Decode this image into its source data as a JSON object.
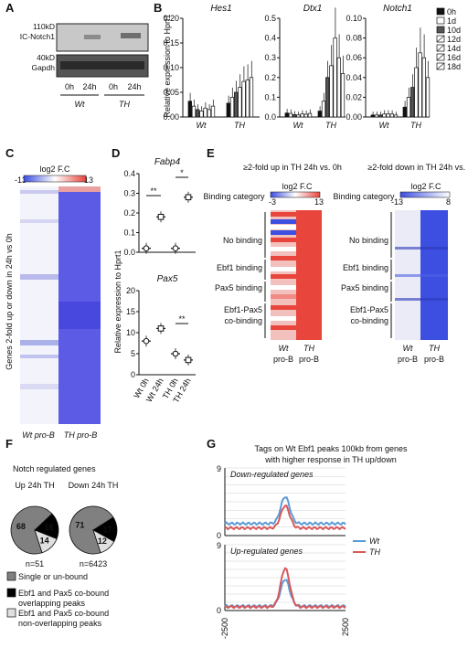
{
  "panels": {
    "A": "A",
    "B": "B",
    "C": "C",
    "D": "D",
    "E": "E",
    "F": "F",
    "G": "G"
  },
  "colors": {
    "red": "#e8453c",
    "blue": "#3c4fe0",
    "wt_line": "#5b9bd5",
    "th_line": "#d9585a",
    "gray": "#808080"
  },
  "blot": {
    "band1_label": "110kD IC-Notch1",
    "band1_l1": "110kD",
    "band1_l2": "IC-Notch1",
    "band2_label": "40kD Gapdh",
    "band2_l1": "40kD",
    "band2_l2": "Gapdh",
    "lanes": [
      "0h",
      "24h",
      "0h",
      "24h"
    ],
    "groups": [
      "Wt",
      "TH"
    ]
  },
  "chart_data": [
    {
      "id": "B",
      "type": "bar",
      "ylabel": "Relative expression to Hprt1",
      "groups": [
        "Wt",
        "TH"
      ],
      "legend": [
        "0h",
        "1d",
        "10d",
        "12d",
        "14d",
        "16d",
        "18d"
      ],
      "subplots": [
        {
          "title": "Hes1",
          "ylim": [
            0,
            0.2
          ],
          "ticks": [
            "0.00",
            "0.05",
            "0.10",
            "0.15",
            "0.20"
          ],
          "Wt": [
            0.032,
            0.022,
            0.015,
            0.012,
            0.018,
            0.015,
            0.022
          ],
          "TH": [
            0.028,
            0.04,
            0.05,
            0.06,
            0.072,
            0.075,
            0.08
          ]
        },
        {
          "title": "Dtx1",
          "ylim": [
            0,
            0.5
          ],
          "ticks": [
            "0.0",
            "0.1",
            "0.2",
            "0.3",
            "0.4",
            "0.5"
          ],
          "Wt": [
            0.02,
            0.018,
            0.012,
            0.01,
            0.015,
            0.014,
            0.018
          ],
          "TH": [
            0.03,
            0.08,
            0.2,
            0.26,
            0.4,
            0.3,
            0.22
          ]
        },
        {
          "title": "Notch1",
          "ylim": [
            0,
            0.1
          ],
          "ticks": [
            "0.00",
            "0.02",
            "0.04",
            "0.06",
            "0.08",
            "0.10"
          ],
          "Wt": [
            0.002,
            0.002,
            0.002,
            0.003,
            0.003,
            0.003,
            0.002
          ],
          "TH": [
            0.01,
            0.02,
            0.03,
            0.05,
            0.065,
            0.06,
            0.04
          ]
        }
      ]
    },
    {
      "id": "D",
      "type": "scatter",
      "ylabel": "Relative expression to Hprt1",
      "categories": [
        "Wt 0h",
        "Wt 24h",
        "TH 0h",
        "TH 24h"
      ],
      "subplots": [
        {
          "title": "Fabp4",
          "ylim": [
            0,
            0.4
          ],
          "ticks": [
            "0.0",
            "0.1",
            "0.2",
            "0.3",
            "0.4"
          ],
          "values": [
            0.02,
            0.18,
            0.02,
            0.28
          ],
          "sig": [
            "**",
            "*"
          ]
        },
        {
          "title": "Pax5",
          "ylim": [
            0,
            20
          ],
          "ticks": [
            "0",
            "5",
            "10",
            "15",
            "20"
          ],
          "values": [
            8,
            11,
            5,
            3.5
          ],
          "sig": [
            "**"
          ]
        }
      ]
    },
    {
      "id": "G",
      "type": "line",
      "title": "Tags on Wt Ebf1 peaks 100kb from genes with higher response in TH up/down",
      "x_range": [
        -2500,
        2500
      ],
      "x_ticks": [
        "-2500",
        "2500"
      ],
      "ylim": [
        0,
        9
      ],
      "series": [
        {
          "name": "Wt"
        },
        {
          "name": "TH"
        }
      ],
      "subplots": [
        {
          "title": "Down-regulated genes",
          "y_ticks": [
            "9",
            "0"
          ],
          "Wt_peak": 5.2,
          "TH_peak": 4.0,
          "baseline_Wt": 1.6,
          "baseline_TH": 1.0
        },
        {
          "title": "Up-regulated genes",
          "y_ticks": [
            "9",
            "0"
          ],
          "Wt_peak": 4.3,
          "TH_peak": 5.8,
          "baseline_Wt": 0.6,
          "baseline_TH": 0.5
        }
      ]
    },
    {
      "id": "F",
      "type": "pie",
      "title": "Notch regulated genes",
      "pies": [
        {
          "label": "Up 24h TH",
          "n": "n=51",
          "values": [
            68,
            18,
            14
          ]
        },
        {
          "label": "Down 24h TH",
          "n": "n=6423",
          "values": [
            71,
            17,
            12
          ]
        }
      ],
      "legend": [
        "Single or un-bound",
        "Ebf1 and Pax5 co-bound overlapping peaks",
        "Ebf1 and Pax5 co-bound non-overlapping peaks"
      ]
    }
  ],
  "heatC": {
    "scale_label": "log2 F.C",
    "scale_min": "-13",
    "scale_max": "13",
    "ylabel": "Genes 2-fold up or down in 24h vs 0h",
    "cols": [
      "Wt pro-B",
      "TH pro-B"
    ]
  },
  "heatE": {
    "left_title": "≥2-fold up in TH 24h vs. 0h",
    "right_title": "≥2-fold down in TH 24h vs. 0h",
    "binding_category": "Binding category",
    "scale_label": "log2 F.C",
    "left_min": "-3",
    "left_max": "13",
    "right_min": "-13",
    "right_max": "8",
    "categories": [
      "No binding",
      "Ebf1 binding",
      "Pax5 binding",
      "Ebf1-Pax5 co-binding"
    ],
    "cols": [
      "Wt pro-B",
      "TH pro-B"
    ]
  },
  "text": {
    "B_group_wt": "Wt",
    "B_group_th": "TH",
    "F_title": "Notch regulated genes",
    "F_up": "Up 24h TH",
    "F_down": "Down 24h TH",
    "F_n1": "n=51",
    "F_n2": "n=6423",
    "F_l1": "Single or un-bound",
    "F_l2a": "Ebf1 and Pax5 co-bound",
    "F_l2b": "overlapping peaks",
    "F_l3a": "Ebf1 and Pax5 co-bound",
    "F_l3b": "non-overlapping peaks",
    "G_title1": "Tags on Wt Ebf1 peaks 100kb from genes",
    "G_title2": "with higher response in TH up/down",
    "G_down": "Down-regulated genes",
    "G_up": "Up-regulated genes",
    "G_wt": "Wt",
    "G_th": "TH"
  }
}
